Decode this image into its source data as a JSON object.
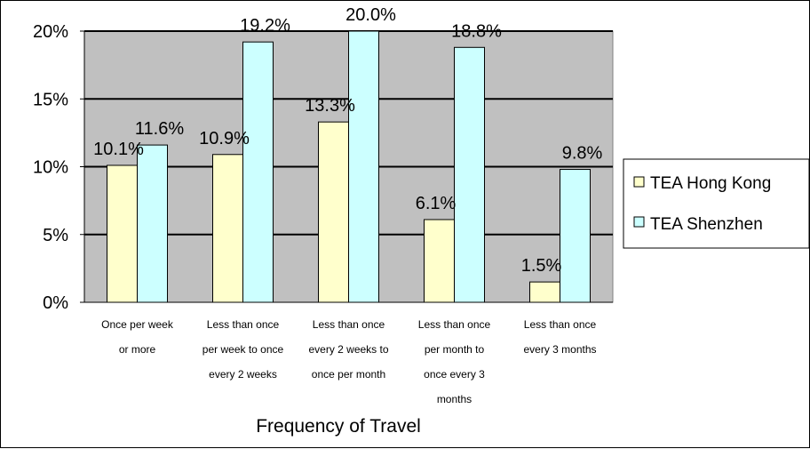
{
  "chart_data": {
    "type": "bar",
    "title": "",
    "xlabel": "Frequency of Travel",
    "ylabel": "",
    "ylim": [
      0,
      20
    ],
    "yticks": [
      "0%",
      "5%",
      "10%",
      "15%",
      "20%"
    ],
    "ytick_values": [
      0,
      5,
      10,
      15,
      20
    ],
    "grid": true,
    "legend_position": "right",
    "categories": [
      [
        "Once per week",
        "or more"
      ],
      [
        "Less than once",
        "per week to once",
        "every 2 weeks"
      ],
      [
        "Less than once",
        "every 2 weeks to",
        "once per month"
      ],
      [
        "Less than once",
        "per month to",
        "once every 3",
        "months"
      ],
      [
        "Less than once",
        "every 3 months"
      ]
    ],
    "series": [
      {
        "name": "TEA Hong Kong",
        "color": "#FFFFCC",
        "values": [
          10.1,
          10.9,
          13.3,
          6.1,
          1.5
        ],
        "labels": [
          "10.1%",
          "10.9%",
          "13.3%",
          "6.1%",
          "1.5%"
        ]
      },
      {
        "name": "TEA Shenzhen",
        "color": "#CCFFFF",
        "values": [
          11.6,
          19.2,
          20.0,
          18.8,
          9.8
        ],
        "labels": [
          "11.6%",
          "19.2%",
          "20.0%",
          "18.8%",
          "9.8%"
        ]
      }
    ],
    "plot_background": "#C0C0C0"
  }
}
